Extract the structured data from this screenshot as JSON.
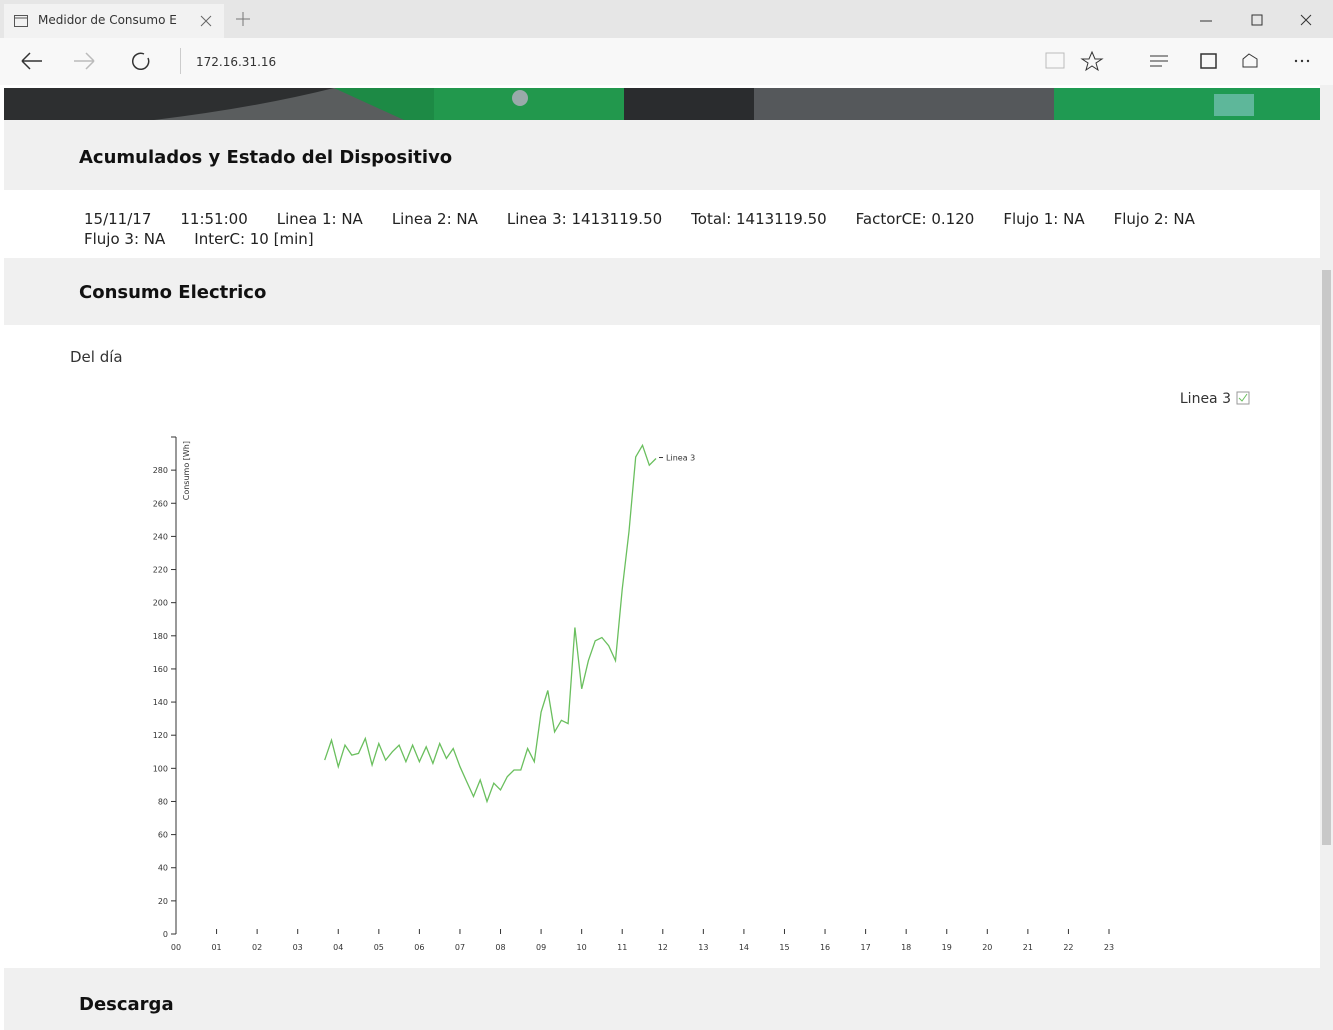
{
  "browser": {
    "tab_title": "Medidor de Consumo E",
    "address": "172.16.31.16"
  },
  "sections": {
    "accumulated": "Acumulados y Estado del Dispositivo",
    "consumption": "Consumo Electrico",
    "download": "Descarga"
  },
  "status": [
    "15/11/17",
    "11:51:00",
    "Linea 1: NA",
    "Linea 2: NA",
    "Linea 3: 1413119.50",
    "Total: 1413119.50",
    "FactorCE: 0.120",
    "Flujo 1: NA",
    "Flujo 2: NA",
    "Flujo 3: NA",
    "InterC: 10 [min]"
  ],
  "subtitle": "Del día",
  "chart_data": {
    "type": "line",
    "y_label": "Consumo [Wh]",
    "x": [
      220,
      230,
      240,
      250,
      260,
      270,
      280,
      290,
      300,
      310,
      320,
      330,
      340,
      350,
      360,
      370,
      380,
      390,
      400,
      410,
      420,
      430,
      440,
      450,
      460,
      470,
      480,
      490,
      500,
      510,
      520,
      530,
      540,
      550,
      560,
      570,
      580,
      590,
      600,
      610,
      620,
      630,
      640,
      650,
      660,
      670,
      680,
      690,
      700,
      710
    ],
    "series": [
      {
        "name": "Linea 3",
        "color": "#6abf5e",
        "values": [
          105,
          117,
          101,
          114,
          108,
          109,
          118,
          102,
          115,
          105,
          110,
          114,
          104,
          114,
          104,
          113,
          103,
          115,
          106,
          112,
          101,
          92,
          83,
          93,
          80,
          91,
          87,
          95,
          99,
          99,
          112,
          104,
          134,
          147,
          122,
          129,
          127,
          185,
          148,
          165,
          177,
          179,
          174,
          165,
          208,
          243,
          288,
          295,
          283,
          287
        ]
      }
    ],
    "xlim": [
      0,
      1380
    ],
    "xticks": [
      {
        "value": 0,
        "label": "00"
      },
      {
        "value": 60,
        "label": "01"
      },
      {
        "value": 120,
        "label": "02"
      },
      {
        "value": 180,
        "label": "03"
      },
      {
        "value": 240,
        "label": "04"
      },
      {
        "value": 300,
        "label": "05"
      },
      {
        "value": 360,
        "label": "06"
      },
      {
        "value": 420,
        "label": "07"
      },
      {
        "value": 480,
        "label": "08"
      },
      {
        "value": 540,
        "label": "09"
      },
      {
        "value": 600,
        "label": "10"
      },
      {
        "value": 660,
        "label": "11"
      },
      {
        "value": 720,
        "label": "12"
      },
      {
        "value": 780,
        "label": "13"
      },
      {
        "value": 840,
        "label": "14"
      },
      {
        "value": 900,
        "label": "15"
      },
      {
        "value": 960,
        "label": "16"
      },
      {
        "value": 1020,
        "label": "17"
      },
      {
        "value": 1080,
        "label": "18"
      },
      {
        "value": 1140,
        "label": "19"
      },
      {
        "value": 1200,
        "label": "20"
      },
      {
        "value": 1260,
        "label": "21"
      },
      {
        "value": 1320,
        "label": "22"
      },
      {
        "value": 1380,
        "label": "23"
      }
    ],
    "ylim": [
      0,
      300
    ],
    "yticks": [
      0,
      20,
      40,
      60,
      80,
      100,
      120,
      140,
      160,
      180,
      200,
      220,
      240,
      260,
      280
    ],
    "legend": "top-right"
  }
}
